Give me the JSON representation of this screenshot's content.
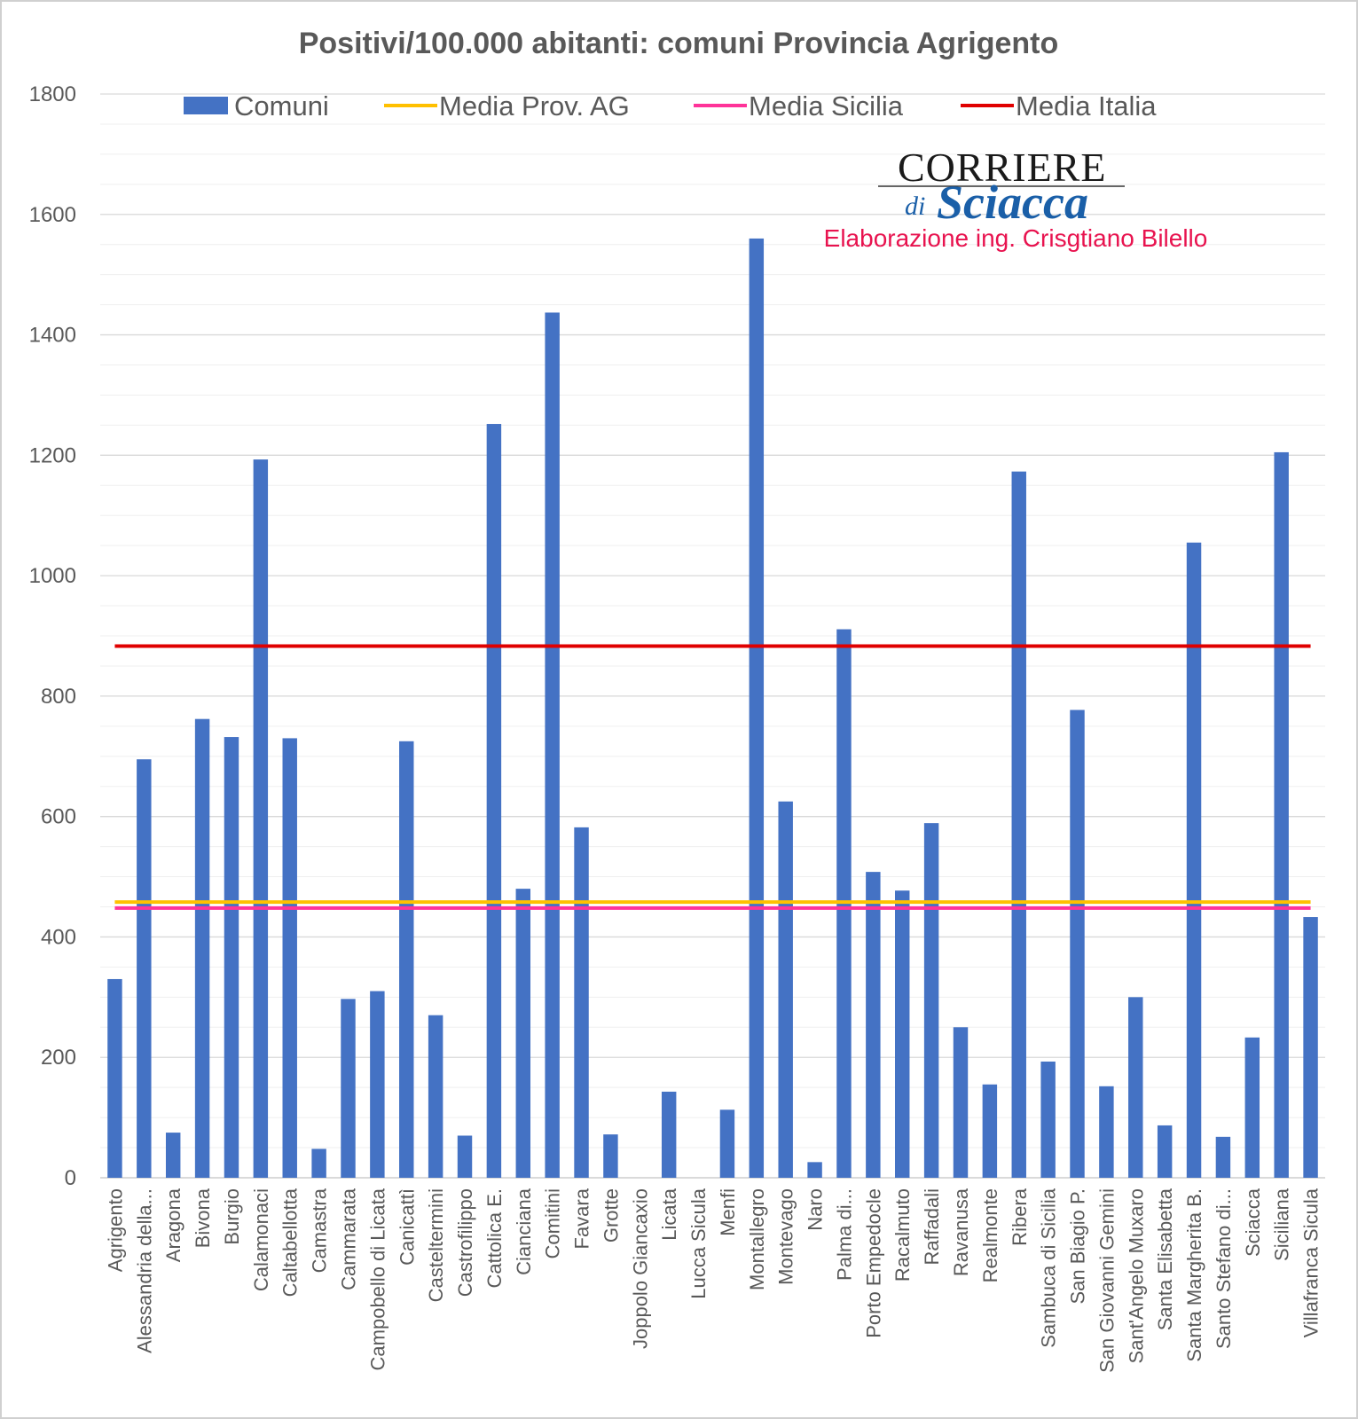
{
  "chart_data": {
    "type": "bar",
    "title": "Positivi/100.000 abitanti: comuni Provincia Agrigento",
    "ylim": [
      0,
      1800
    ],
    "yticks": [
      0,
      200,
      400,
      600,
      800,
      1000,
      1200,
      1400,
      1600,
      1800
    ],
    "grid": true,
    "legend_position": "top",
    "categories": [
      "Agrigento",
      "Alessandria della...",
      "Aragona",
      "Bivona",
      "Burgio",
      "Calamonaci",
      "Caltabellotta",
      "Camastra",
      "Cammarata",
      "Campobello di Licata",
      "Canicattì",
      "Casteltermini",
      "Castrofilippo",
      "Cattolica E.",
      "Cianciana",
      "Comitini",
      "Favara",
      "Grotte",
      "Joppolo Giancaxio",
      "Licata",
      "Lucca Sicula",
      "Menfi",
      "Montallegro",
      "Montevago",
      "Naro",
      "Palma di...",
      "Porto Empedocle",
      "Racalmuto",
      "Raffadali",
      "Ravanusa",
      "Realmonte",
      "Ribera",
      "Sambuca di Sicilia",
      "San Biagio P.",
      "San Giovanni Gemini",
      "Sant'Angelo Muxaro",
      "Santa Elisabetta",
      "Santa Margherita B.",
      "Santo Stefano di...",
      "Sciacca",
      "Siciliana",
      "Villafranca Sicula"
    ],
    "series": [
      {
        "name": "Comuni",
        "color": "#4472c4",
        "values": [
          330,
          695,
          75,
          762,
          732,
          1193,
          730,
          48,
          297,
          310,
          725,
          270,
          70,
          1252,
          480,
          1437,
          582,
          72,
          0,
          143,
          0,
          113,
          1560,
          625,
          26,
          911,
          508,
          477,
          589,
          250,
          155,
          1173,
          193,
          777,
          152,
          300,
          87,
          1055,
          68,
          233,
          1205,
          433
        ]
      },
      {
        "name": "Media Prov. AG",
        "color": "#ffc000",
        "type": "line",
        "value": 458
      },
      {
        "name": "Media Sicilia",
        "color": "#ff3399",
        "type": "line",
        "value": 448
      },
      {
        "name": "Media Italia",
        "color": "#e00000",
        "type": "line",
        "value": 883
      }
    ]
  },
  "logo": {
    "top": "CORRIERE",
    "di": "di",
    "script": "Sciacca"
  },
  "credit": "Elaborazione ing. Crisgtiano Bilello"
}
